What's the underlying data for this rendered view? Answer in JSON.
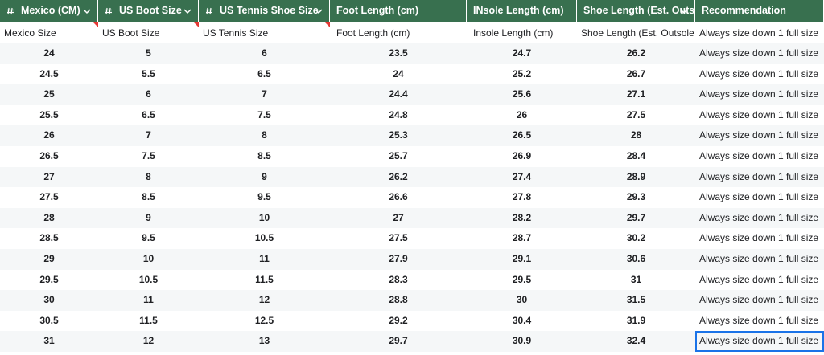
{
  "header": {
    "columns": [
      "Mexico (CM)",
      "US Boot Size",
      "US Tennis Shoe Size",
      "Foot Length (cm)",
      "INsole Length (cm)",
      "Shoe Length (Est. Outs",
      "Recommendation"
    ]
  },
  "table": {
    "columns": [
      "Mexico Size",
      "US Boot Size",
      "US Tennis Size",
      "Foot Length (cm)",
      "Insole Length (cm)",
      "Shoe Length (Est. Outsole (",
      "Always size down 1 full size"
    ],
    "rows": [
      [
        24,
        5,
        6,
        23.5,
        24.7,
        26.2,
        "Always size down 1 full size"
      ],
      [
        24.5,
        5.5,
        6.5,
        24,
        25.2,
        26.7,
        "Always size down 1 full size"
      ],
      [
        25,
        6,
        7,
        24.4,
        25.6,
        27.1,
        "Always size down 1 full size"
      ],
      [
        25.5,
        6.5,
        7.5,
        24.8,
        26,
        27.5,
        "Always size down 1 full size"
      ],
      [
        26,
        7,
        8,
        25.3,
        26.5,
        28,
        "Always size down 1 full size"
      ],
      [
        26.5,
        7.5,
        8.5,
        25.7,
        26.9,
        28.4,
        "Always size down 1 full size"
      ],
      [
        27,
        8,
        9,
        26.2,
        27.4,
        28.9,
        "Always size down 1 full size"
      ],
      [
        27.5,
        8.5,
        9.5,
        26.6,
        27.8,
        29.3,
        "Always size down 1 full size"
      ],
      [
        28,
        9,
        10,
        27,
        28.2,
        29.7,
        "Always size down 1 full size"
      ],
      [
        28.5,
        9.5,
        10.5,
        27.5,
        28.7,
        30.2,
        "Always size down 1 full size"
      ],
      [
        29,
        10,
        11,
        27.9,
        29.1,
        30.6,
        "Always size down 1 full size"
      ],
      [
        29.5,
        10.5,
        11.5,
        28.3,
        29.5,
        31,
        "Always size down 1 full size"
      ],
      [
        30,
        11,
        12,
        28.8,
        30,
        31.5,
        "Always size down 1 full size"
      ],
      [
        30.5,
        11.5,
        12.5,
        29.2,
        30.4,
        31.9,
        "Always size down 1 full size"
      ],
      [
        31,
        12,
        13,
        29.7,
        30.9,
        32.4,
        "Always size down 1 full size"
      ]
    ]
  }
}
